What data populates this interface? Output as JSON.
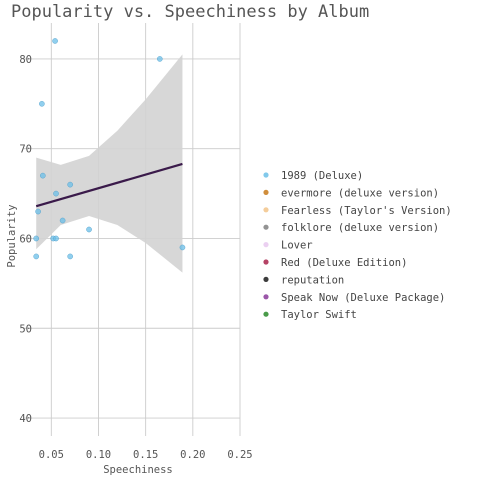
{
  "chart_data": {
    "type": "scatter",
    "title": "Popularity vs. Speechiness by Album",
    "xlabel": "Speechiness",
    "ylabel": "Popularity",
    "xlim": [
      0.02,
      0.25
    ],
    "ylim": [
      38,
      84
    ],
    "xticks": [
      0.05,
      0.1,
      0.15,
      0.2,
      0.25
    ],
    "xtick_labels": [
      "0.05",
      "0.10",
      "0.15",
      "0.20",
      "0.25"
    ],
    "yticks": [
      40,
      50,
      60,
      70,
      80
    ],
    "ytick_labels": [
      "40",
      "50",
      "60",
      "70",
      "80"
    ],
    "grid": true,
    "legend_position": "right",
    "legend": [
      {
        "label": "1989 (Deluxe)",
        "color": "#6bbfe8"
      },
      {
        "label": "evermore (deluxe version)",
        "color": "#c87a1a"
      },
      {
        "label": "Fearless (Taylor's Version)",
        "color": "#f2c48a"
      },
      {
        "label": "folklore (deluxe version)",
        "color": "#808080"
      },
      {
        "label": "Lover",
        "color": "#e8c8ee"
      },
      {
        "label": "Red (Deluxe Edition)",
        "color": "#a8224a"
      },
      {
        "label": "reputation",
        "color": "#1a1a1a"
      },
      {
        "label": "Speak Now (Deluxe Package)",
        "color": "#8a3a9a"
      },
      {
        "label": "Taylor Swift",
        "color": "#2a8a2a"
      }
    ],
    "series": [
      {
        "name": "1989 (Deluxe)",
        "color": "#6bbfe8",
        "x": [
          0.054,
          0.165,
          0.04,
          0.041,
          0.07,
          0.055,
          0.036,
          0.062,
          0.034,
          0.052,
          0.055,
          0.09,
          0.034,
          0.07,
          0.189
        ],
        "y": [
          82,
          80,
          75,
          67,
          66,
          65,
          63,
          62,
          60,
          60,
          60,
          61,
          58,
          58,
          59
        ]
      }
    ],
    "trend_line": {
      "x": [
        0.034,
        0.189
      ],
      "y": [
        63.6,
        68.3
      ],
      "color": "#3a1a4a"
    },
    "confidence_band": {
      "x": [
        0.034,
        0.06,
        0.09,
        0.12,
        0.15,
        0.189
      ],
      "upper": [
        69.0,
        68.2,
        69.2,
        72.0,
        75.5,
        80.5
      ],
      "lower": [
        58.8,
        61.5,
        62.5,
        61.5,
        59.5,
        56.2
      ],
      "color": "#d3d3d3"
    }
  }
}
